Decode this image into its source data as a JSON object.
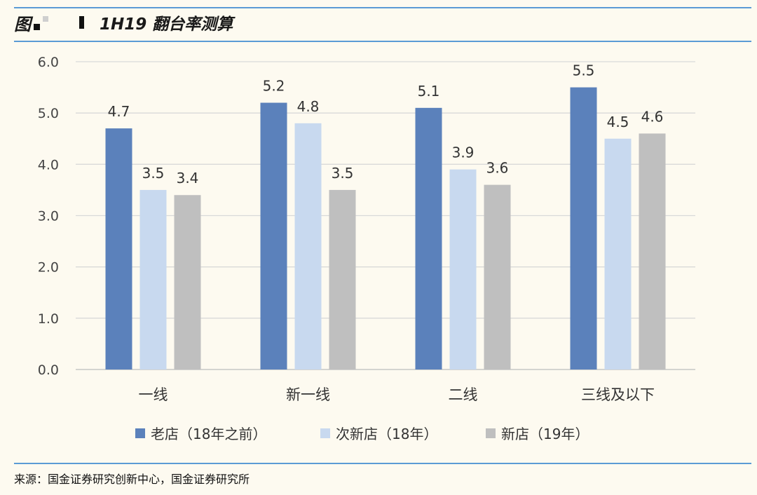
{
  "header": {
    "figure_label": "图",
    "title": "1H19 翻台率测算"
  },
  "chart_data": {
    "type": "bar",
    "categories": [
      "一线",
      "新一线",
      "二线",
      "三线及以下"
    ],
    "series": [
      {
        "name": "老店（18年之前）",
        "color": "#5b81bb",
        "values": [
          4.7,
          5.2,
          5.1,
          5.5
        ]
      },
      {
        "name": "次新店（18年）",
        "color": "#c8d9ef",
        "values": [
          3.5,
          4.8,
          3.9,
          4.5
        ]
      },
      {
        "name": "新店（19年）",
        "color": "#bfbfbf",
        "values": [
          3.4,
          3.5,
          3.6,
          4.6
        ]
      }
    ],
    "data_labels": [
      [
        "4.7",
        "5.2",
        "5.1",
        "5.5"
      ],
      [
        "3.5",
        "4.8",
        "3.9",
        "4.5"
      ],
      [
        "3.4",
        "3.5",
        "3.6",
        "4.6"
      ]
    ],
    "y_ticks": [
      "0.0",
      "1.0",
      "2.0",
      "3.0",
      "4.0",
      "5.0",
      "6.0"
    ],
    "ylim": [
      0,
      6
    ],
    "grid": true,
    "legend_position": "bottom"
  },
  "source": "来源：国金证券研究创新中心，国金证券研究所"
}
